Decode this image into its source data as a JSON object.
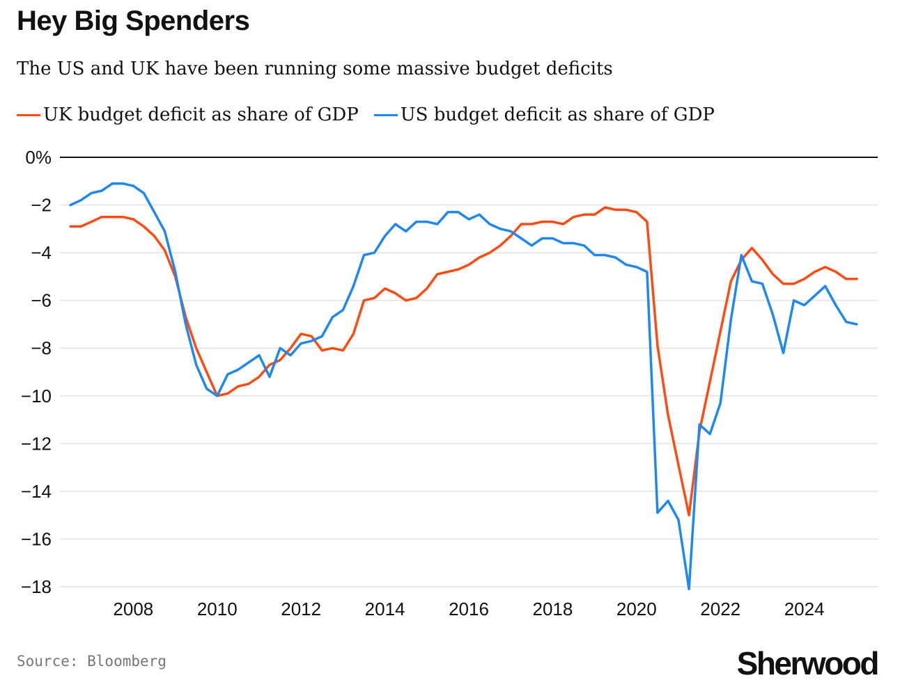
{
  "chart_data": {
    "type": "line",
    "title": "Hey Big Spenders",
    "subtitle": "The US and UK have been running some massive budget deficits",
    "ylim": [
      -18,
      0
    ],
    "xlim": [
      2006.25,
      2025.75
    ],
    "y_ticks": [
      0,
      -2,
      -4,
      -6,
      -8,
      -10,
      -12,
      -14,
      -16,
      -18
    ],
    "y_tick_labels": [
      "0%",
      "−2",
      "−4",
      "−6",
      "−8",
      "−10",
      "−12",
      "−14",
      "−16",
      "−18"
    ],
    "x_ticks": [
      2008,
      2010,
      2012,
      2014,
      2016,
      2018,
      2020,
      2022,
      2024
    ],
    "x_tick_labels": [
      "2008",
      "2010",
      "2012",
      "2014",
      "2016",
      "2018",
      "2020",
      "2022",
      "2024"
    ],
    "grid": true,
    "legend_position": "top-left",
    "series": [
      {
        "name": "UK budget deficit as share of GDP",
        "color": "#ff4b12",
        "x": [
          2006.5,
          2006.75,
          2007.0,
          2007.25,
          2007.5,
          2007.75,
          2008.0,
          2008.25,
          2008.5,
          2008.75,
          2009.0,
          2009.25,
          2009.5,
          2009.75,
          2010.0,
          2010.25,
          2010.5,
          2010.75,
          2011.0,
          2011.25,
          2011.5,
          2011.75,
          2012.0,
          2012.25,
          2012.5,
          2012.75,
          2013.0,
          2013.25,
          2013.5,
          2013.75,
          2014.0,
          2014.25,
          2014.5,
          2014.75,
          2015.0,
          2015.25,
          2015.5,
          2015.75,
          2016.0,
          2016.25,
          2016.5,
          2016.75,
          2017.0,
          2017.25,
          2017.5,
          2017.75,
          2018.0,
          2018.25,
          2018.5,
          2018.75,
          2019.0,
          2019.25,
          2019.5,
          2019.75,
          2020.0,
          2020.25,
          2020.5,
          2020.75,
          2021.0,
          2021.25,
          2021.5,
          2021.75,
          2022.0,
          2022.25,
          2022.5,
          2022.75,
          2023.0,
          2023.25,
          2023.5,
          2023.75,
          2024.0,
          2024.25,
          2024.5,
          2024.75,
          2025.0,
          2025.25
        ],
        "values": [
          -2.9,
          -2.9,
          -2.7,
          -2.5,
          -2.5,
          -2.5,
          -2.6,
          -2.9,
          -3.3,
          -3.9,
          -5.0,
          -6.7,
          -8.0,
          -9.0,
          -10.0,
          -9.9,
          -9.6,
          -9.5,
          -9.2,
          -8.7,
          -8.5,
          -8.0,
          -7.4,
          -7.5,
          -8.1,
          -8.0,
          -8.1,
          -7.4,
          -6.0,
          -5.9,
          -5.5,
          -5.7,
          -6.0,
          -5.9,
          -5.5,
          -4.9,
          -4.8,
          -4.7,
          -4.5,
          -4.2,
          -4.0,
          -3.7,
          -3.3,
          -2.8,
          -2.8,
          -2.7,
          -2.7,
          -2.8,
          -2.5,
          -2.4,
          -2.4,
          -2.1,
          -2.2,
          -2.2,
          -2.3,
          -2.7,
          -7.9,
          -10.8,
          -12.9,
          -15.0,
          -11.5,
          -9.4,
          -7.3,
          -5.2,
          -4.3,
          -3.8,
          -4.3,
          -4.9,
          -5.3,
          -5.3,
          -5.1,
          -4.8,
          -4.6,
          -4.8,
          -5.1,
          -5.1
        ]
      },
      {
        "name": "US budget deficit as share of GDP",
        "color": "#1e88f2",
        "x": [
          2006.5,
          2006.75,
          2007.0,
          2007.25,
          2007.5,
          2007.75,
          2008.0,
          2008.25,
          2008.5,
          2008.75,
          2009.0,
          2009.25,
          2009.5,
          2009.75,
          2010.0,
          2010.25,
          2010.5,
          2010.75,
          2011.0,
          2011.25,
          2011.5,
          2011.75,
          2012.0,
          2012.25,
          2012.5,
          2012.75,
          2013.0,
          2013.25,
          2013.5,
          2013.75,
          2014.0,
          2014.25,
          2014.5,
          2014.75,
          2015.0,
          2015.25,
          2015.5,
          2015.75,
          2016.0,
          2016.25,
          2016.5,
          2016.75,
          2017.0,
          2017.25,
          2017.5,
          2017.75,
          2018.0,
          2018.25,
          2018.5,
          2018.75,
          2019.0,
          2019.25,
          2019.5,
          2019.75,
          2020.0,
          2020.25,
          2020.5,
          2020.75,
          2021.0,
          2021.25,
          2021.5,
          2021.75,
          2022.0,
          2022.25,
          2022.5,
          2022.75,
          2023.0,
          2023.25,
          2023.5,
          2023.75,
          2024.0,
          2024.25,
          2024.5,
          2024.75,
          2025.0,
          2025.25
        ],
        "values": [
          -2.0,
          -1.8,
          -1.5,
          -1.4,
          -1.1,
          -1.1,
          -1.2,
          -1.5,
          -2.3,
          -3.1,
          -4.8,
          -7.0,
          -8.7,
          -9.7,
          -10.0,
          -9.1,
          -8.9,
          -8.6,
          -8.3,
          -9.2,
          -8.0,
          -8.3,
          -7.8,
          -7.7,
          -7.5,
          -6.7,
          -6.4,
          -5.4,
          -4.1,
          -4.0,
          -3.3,
          -2.8,
          -3.1,
          -2.7,
          -2.7,
          -2.8,
          -2.3,
          -2.3,
          -2.6,
          -2.4,
          -2.8,
          -3.0,
          -3.1,
          -3.4,
          -3.7,
          -3.4,
          -3.4,
          -3.6,
          -3.6,
          -3.7,
          -4.1,
          -4.1,
          -4.2,
          -4.5,
          -4.6,
          -4.8,
          -14.9,
          -14.4,
          -15.2,
          -18.1,
          -11.2,
          -11.6,
          -10.3,
          -6.8,
          -4.1,
          -5.2,
          -5.3,
          -6.6,
          -8.2,
          -6.0,
          -6.2,
          -5.8,
          -5.4,
          -6.2,
          -6.9,
          -7.0
        ]
      }
    ]
  },
  "source_text": "Source: Bloomberg",
  "brand": "Sherwood"
}
